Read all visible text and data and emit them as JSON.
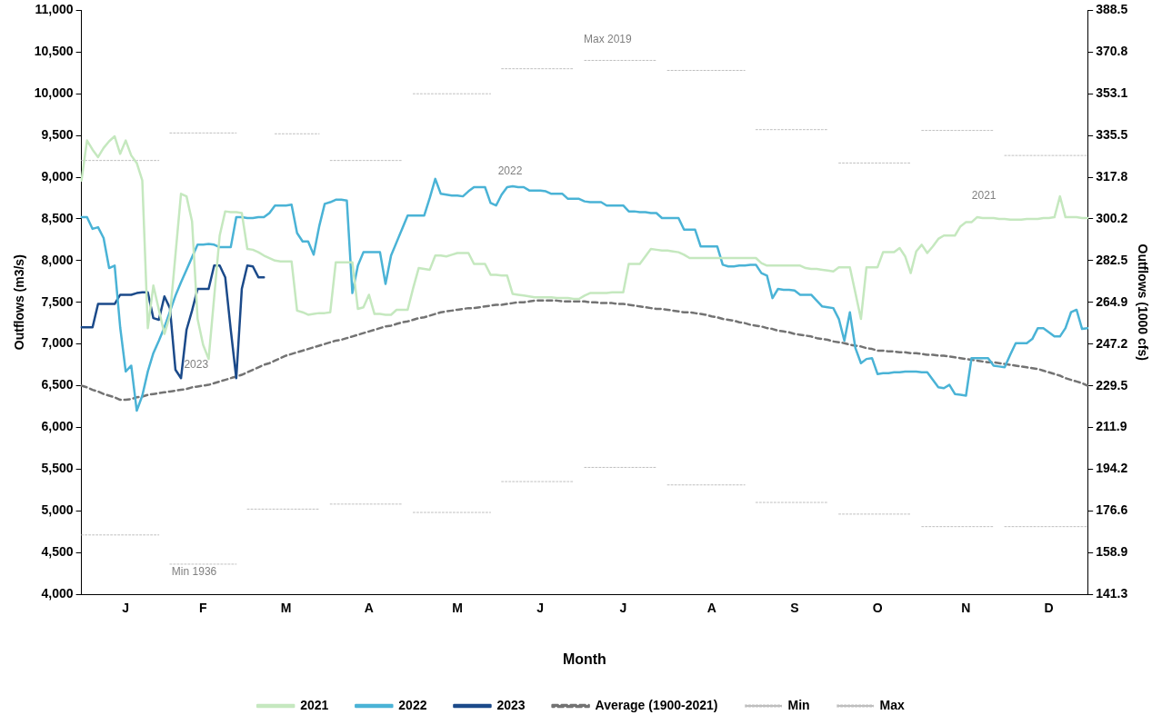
{
  "chart_data": {
    "type": "line",
    "xlabel": "Month",
    "ylabel": "Outflows (m3/s)",
    "y2label": "Outflows (1000 cfs)",
    "categories": [
      null,
      null,
      null,
      null,
      null,
      null,
      null,
      null,
      "J",
      null,
      null,
      null,
      null,
      null,
      null,
      null,
      null,
      null,
      null,
      null,
      null,
      null,
      "F",
      null,
      null,
      null,
      null,
      null,
      null,
      null,
      null,
      null,
      null,
      null,
      null,
      null,
      null,
      "M",
      null,
      null,
      null,
      null,
      null,
      null,
      null,
      null,
      null,
      null,
      null,
      null,
      null,
      null,
      "A",
      null,
      null,
      null,
      null,
      null,
      null,
      null,
      null,
      null,
      null,
      null,
      null,
      null,
      null,
      null,
      "M",
      null,
      null,
      null,
      null,
      null,
      null,
      null,
      null,
      null,
      null,
      null,
      null,
      null,
      null,
      "J",
      null,
      null,
      null,
      null,
      null,
      null,
      null,
      null,
      null,
      null,
      null,
      null,
      null,
      null,
      "J",
      null,
      null,
      null,
      null,
      null,
      null,
      null,
      null,
      null,
      null,
      null,
      null,
      null,
      null,
      null,
      "A",
      null,
      null,
      null,
      null,
      null,
      null,
      null,
      null,
      null,
      null,
      null,
      null,
      null,
      null,
      "S",
      null,
      null,
      null,
      null,
      null,
      null,
      null,
      null,
      null,
      null,
      null,
      null,
      null,
      null,
      "O",
      null,
      null,
      null,
      null,
      null,
      null,
      null,
      null,
      null,
      null,
      null,
      null,
      null,
      null,
      null,
      "N",
      null,
      null,
      null,
      null,
      null,
      null,
      null,
      null,
      null,
      null,
      null,
      null,
      null,
      null,
      "D",
      null,
      null,
      null,
      null,
      null,
      null,
      null
    ],
    "ylim": [
      4000,
      11000
    ],
    "yticks": [
      {
        "value": 4000,
        "label": "4,000"
      },
      {
        "value": 4500,
        "label": "4,500"
      },
      {
        "value": 5000,
        "label": "5,000"
      },
      {
        "value": 5500,
        "label": "5,500"
      },
      {
        "value": 6000,
        "label": "6,000"
      },
      {
        "value": 6500,
        "label": "6,500"
      },
      {
        "value": 7000,
        "label": "7,000"
      },
      {
        "value": 7500,
        "label": "7,500"
      },
      {
        "value": 8000,
        "label": "8,000"
      },
      {
        "value": 8500,
        "label": "8,500"
      },
      {
        "value": 9000,
        "label": "9,000"
      },
      {
        "value": 9500,
        "label": "9,500"
      },
      {
        "value": 10000,
        "label": "10,000"
      },
      {
        "value": 10500,
        "label": "10,500"
      },
      {
        "value": 11000,
        "label": "11,000"
      }
    ],
    "y2lim": [
      141.3,
      388.5
    ],
    "y2ticks": [
      141.3,
      158.9,
      176.6,
      194.2,
      211.9,
      229.5,
      247.2,
      264.9,
      282.5,
      300.2,
      317.8,
      335.5,
      353.1,
      370.8,
      388.5
    ],
    "grid": false,
    "legend": "bottom",
    "marker": "none",
    "series": [
      {
        "name": "2021",
        "color": "#c5e8bf",
        "line_style": "solid",
        "values": [
          8960,
          9440,
          9330,
          9240,
          9350,
          9430,
          9490,
          9280,
          9440,
          9260,
          9170,
          8960,
          7190,
          7700,
          7410,
          7120,
          7340,
          8070,
          8800,
          8770,
          8470,
          7300,
          6990,
          6820,
          7560,
          8300,
          8590,
          8580,
          8580,
          8570,
          8140,
          8130,
          8100,
          8060,
          8030,
          8000,
          7990,
          7990,
          7990,
          7400,
          7380,
          7350,
          7360,
          7370,
          7370,
          7380,
          7980,
          7980,
          7980,
          7980,
          7420,
          7440,
          7590,
          7360,
          7360,
          7350,
          7350,
          7410,
          7410,
          7410,
          7670,
          7910,
          7900,
          7890,
          8060,
          8060,
          8050,
          8070,
          8090,
          8090,
          8090,
          7960,
          7960,
          7960,
          7830,
          7830,
          7820,
          7820,
          7600,
          7590,
          7580,
          7570,
          7560,
          7560,
          7560,
          7560,
          7550,
          7550,
          7550,
          7540,
          7540,
          7580,
          7610,
          7610,
          7610,
          7610,
          7620,
          7620,
          7620,
          7960,
          7960,
          7960,
          8050,
          8140,
          8130,
          8120,
          8120,
          8110,
          8100,
          8070,
          8030,
          8030,
          8030,
          8030,
          8030,
          8030,
          8030,
          8030,
          8030,
          8030,
          8030,
          8030,
          8030,
          7970,
          7940,
          7940,
          7940,
          7940,
          7940,
          7940,
          7940,
          7910,
          7900,
          7900,
          7890,
          7880,
          7870,
          7920,
          7920,
          7920,
          7610,
          7300,
          7920,
          7920,
          7920,
          8100,
          8100,
          8100,
          8150,
          8050,
          7850,
          8110,
          8190,
          8090,
          8170,
          8260,
          8300,
          8300,
          8300,
          8410,
          8460,
          8460,
          8520,
          8510,
          8510,
          8510,
          8500,
          8500,
          8490,
          8490,
          8490,
          8500,
          8500,
          8500,
          8510,
          8510,
          8520,
          8770,
          8520,
          8520,
          8520,
          8510,
          8510
        ]
      },
      {
        "name": "2022",
        "color": "#4ab3d6",
        "line_style": "solid",
        "values": [
          8520,
          8520,
          8380,
          8400,
          8270,
          7910,
          7940,
          7200,
          6670,
          6740,
          6200,
          6380,
          6670,
          6890,
          7040,
          7200,
          7390,
          7580,
          7740,
          7890,
          8040,
          8190,
          8190,
          8200,
          8190,
          8160,
          8160,
          8160,
          8520,
          8520,
          8510,
          8510,
          8520,
          8520,
          8570,
          8660,
          8660,
          8660,
          8670,
          8330,
          8230,
          8230,
          8070,
          8410,
          8680,
          8700,
          8730,
          8730,
          8720,
          7610,
          7940,
          8100,
          8100,
          8100,
          8100,
          7720,
          8060,
          8220,
          8380,
          8540,
          8540,
          8540,
          8540,
          8750,
          8980,
          8800,
          8790,
          8780,
          8780,
          8770,
          8830,
          8880,
          8880,
          8880,
          8690,
          8660,
          8790,
          8880,
          8890,
          8880,
          8880,
          8840,
          8840,
          8840,
          8830,
          8800,
          8800,
          8800,
          8740,
          8740,
          8740,
          8710,
          8700,
          8700,
          8700,
          8660,
          8660,
          8660,
          8660,
          8590,
          8590,
          8580,
          8580,
          8570,
          8570,
          8510,
          8510,
          8510,
          8510,
          8370,
          8370,
          8370,
          8170,
          8170,
          8170,
          8170,
          7950,
          7930,
          7930,
          7940,
          7940,
          7950,
          7950,
          7850,
          7820,
          7550,
          7660,
          7650,
          7650,
          7640,
          7590,
          7590,
          7590,
          7520,
          7450,
          7440,
          7430,
          7300,
          7040,
          7380,
          6950,
          6770,
          6820,
          6830,
          6640,
          6650,
          6650,
          6660,
          6660,
          6670,
          6670,
          6670,
          6660,
          6660,
          6570,
          6480,
          6470,
          6510,
          6400,
          6390,
          6380,
          6830,
          6830,
          6830,
          6830,
          6740,
          6730,
          6720,
          6870,
          7010,
          7010,
          7010,
          7060,
          7190,
          7190,
          7140,
          7090,
          7090,
          7190,
          7380,
          7410,
          7180,
          7190
        ]
      },
      {
        "name": "2023",
        "color": "#1b4a8a",
        "line_style": "solid",
        "values": [
          7200,
          7200,
          7200,
          7480,
          7480,
          7480,
          7480,
          7590,
          7590,
          7590,
          7610,
          7620,
          7620,
          7310,
          7290,
          7570,
          7430,
          6690,
          6590,
          7170,
          7400,
          7660,
          7660,
          7660,
          7940,
          7940,
          7800,
          7170,
          6590,
          7660,
          7940,
          7930,
          7800,
          7800,
          null,
          null,
          null,
          null,
          null,
          null,
          null,
          null,
          null,
          null,
          null,
          null,
          null,
          null,
          null,
          null,
          null,
          null,
          null,
          null,
          null,
          null,
          null,
          null,
          null,
          null,
          null,
          null,
          null,
          null,
          null,
          null,
          null,
          null,
          null,
          null,
          null,
          null,
          null,
          null,
          null,
          null,
          null,
          null,
          null,
          null,
          null,
          null,
          null,
          null,
          null,
          null,
          null,
          null,
          null,
          null,
          null,
          null,
          null,
          null,
          null,
          null,
          null,
          null,
          null,
          null,
          null,
          null,
          null,
          null,
          null,
          null,
          null,
          null,
          null,
          null,
          null,
          null,
          null,
          null,
          null,
          null,
          null,
          null,
          null,
          null,
          null,
          null,
          null,
          null,
          null,
          null,
          null,
          null,
          null,
          null,
          null,
          null,
          null,
          null,
          null,
          null,
          null,
          null,
          null,
          null,
          null,
          null,
          null,
          null,
          null,
          null,
          null,
          null,
          null,
          null,
          null,
          null,
          null,
          null,
          null,
          null,
          null,
          null,
          null,
          null,
          null,
          null,
          null,
          null,
          null,
          null,
          null,
          null,
          null,
          null,
          null,
          null,
          null,
          null,
          null,
          null,
          null,
          null,
          null,
          null,
          null,
          null,
          null
        ]
      },
      {
        "name": "Average (1900-2021)",
        "color": "#737373",
        "line_style": "dashed",
        "values": [
          6500,
          6480,
          6450,
          6430,
          6400,
          6380,
          6360,
          6330,
          6330,
          6340,
          6360,
          6370,
          6390,
          6400,
          6410,
          6420,
          6430,
          6440,
          6450,
          6460,
          6480,
          6490,
          6500,
          6510,
          6530,
          6550,
          6570,
          6590,
          6610,
          6630,
          6660,
          6690,
          6720,
          6750,
          6770,
          6800,
          6830,
          6860,
          6880,
          6900,
          6920,
          6940,
          6960,
          6980,
          7000,
          7020,
          7040,
          7050,
          7070,
          7090,
          7110,
          7130,
          7150,
          7170,
          7190,
          7210,
          7220,
          7240,
          7260,
          7270,
          7290,
          7310,
          7320,
          7340,
          7360,
          7380,
          7390,
          7400,
          7410,
          7420,
          7430,
          7430,
          7440,
          7450,
          7460,
          7470,
          7470,
          7480,
          7490,
          7500,
          7500,
          7510,
          7520,
          7520,
          7520,
          7520,
          7520,
          7510,
          7510,
          7510,
          7510,
          7510,
          7500,
          7500,
          7490,
          7490,
          7490,
          7480,
          7480,
          7470,
          7460,
          7450,
          7440,
          7430,
          7420,
          7420,
          7410,
          7400,
          7390,
          7380,
          7380,
          7370,
          7360,
          7350,
          7330,
          7320,
          7300,
          7290,
          7280,
          7260,
          7250,
          7230,
          7220,
          7210,
          7190,
          7180,
          7160,
          7150,
          7140,
          7120,
          7110,
          7100,
          7090,
          7070,
          7060,
          7050,
          7030,
          7020,
          7010,
          6990,
          6980,
          6970,
          6950,
          6940,
          6920,
          6920,
          6910,
          6910,
          6900,
          6900,
          6890,
          6890,
          6880,
          6870,
          6870,
          6860,
          6860,
          6850,
          6840,
          6830,
          6820,
          6810,
          6800,
          6790,
          6780,
          6780,
          6770,
          6760,
          6750,
          6740,
          6730,
          6720,
          6710,
          6700,
          6680,
          6660,
          6640,
          6620,
          6590,
          6570,
          6550,
          6530,
          6500
        ]
      },
      {
        "name": "Min",
        "color": "#bfbfbf",
        "line_style": "dotted",
        "values": [
          4710,
          4710,
          4710,
          4710,
          4710,
          4710,
          4710,
          4710,
          4710,
          4710,
          4710,
          4710,
          4710,
          4710,
          4710,
          null,
          4360,
          4360,
          4360,
          4360,
          4360,
          4360,
          4360,
          4360,
          4360,
          4360,
          4360,
          4360,
          4360,
          null,
          5020,
          5020,
          5020,
          5020,
          5020,
          5020,
          5020,
          5020,
          5020,
          5020,
          5020,
          5020,
          5020,
          5020,
          null,
          5080,
          5080,
          5080,
          5080,
          5080,
          5080,
          5080,
          5080,
          5080,
          5080,
          5080,
          5080,
          5080,
          5080,
          null,
          4980,
          4980,
          4980,
          4980,
          4980,
          4980,
          4980,
          4980,
          4980,
          4980,
          4980,
          4980,
          4980,
          4980,
          4980,
          null,
          5350,
          5350,
          5350,
          5350,
          5350,
          5350,
          5350,
          5350,
          5350,
          5350,
          5350,
          5350,
          5350,
          5350,
          null,
          5520,
          5520,
          5520,
          5520,
          5520,
          5520,
          5520,
          5520,
          5520,
          5520,
          5520,
          5520,
          5520,
          5520,
          null,
          5310,
          5310,
          5310,
          5310,
          5310,
          5310,
          5310,
          5310,
          5310,
          5310,
          5310,
          5310,
          5310,
          5310,
          5310,
          null,
          5100,
          5100,
          5100,
          5100,
          5100,
          5100,
          5100,
          5100,
          5100,
          5100,
          5100,
          5100,
          5100,
          5100,
          null,
          4960,
          4960,
          4960,
          4960,
          4960,
          4960,
          4960,
          4960,
          4960,
          4960,
          4960,
          4960,
          4960,
          4960,
          null,
          4810,
          4810,
          4810,
          4810,
          4810,
          4810,
          4810,
          4810,
          4810,
          4810,
          4810,
          4810,
          4810,
          4810,
          null,
          4810,
          4810,
          4810,
          4810,
          4810,
          4810,
          4810,
          4810,
          4810,
          4810,
          4810,
          4810,
          4810,
          4810,
          4810,
          4810
        ]
      },
      {
        "name": "Max",
        "color": "#bfbfbf",
        "line_style": "dotted",
        "values": [
          9200,
          9200,
          9200,
          9200,
          9200,
          9200,
          9200,
          9200,
          9200,
          9200,
          9200,
          9200,
          9200,
          9200,
          9200,
          null,
          9530,
          9530,
          9530,
          9530,
          9530,
          9530,
          9530,
          9530,
          9530,
          9530,
          9530,
          9530,
          9530,
          null,
          null,
          null,
          null,
          null,
          null,
          9520,
          9520,
          9520,
          9520,
          9520,
          9520,
          9520,
          9520,
          9520,
          null,
          9200,
          9200,
          9200,
          9200,
          9200,
          9200,
          9200,
          9200,
          9200,
          9200,
          9200,
          9200,
          9200,
          9200,
          null,
          10000,
          10000,
          10000,
          10000,
          10000,
          10000,
          10000,
          10000,
          10000,
          10000,
          10000,
          10000,
          10000,
          10000,
          10000,
          null,
          10300,
          10300,
          10300,
          10300,
          10300,
          10300,
          10300,
          10300,
          10300,
          10300,
          10300,
          10300,
          10300,
          10300,
          null,
          10400,
          10400,
          10400,
          10400,
          10400,
          10400,
          10400,
          10400,
          10400,
          10400,
          10400,
          10400,
          10400,
          10400,
          null,
          10280,
          10280,
          10280,
          10280,
          10280,
          10280,
          10280,
          10280,
          10280,
          10280,
          10280,
          10280,
          10280,
          10280,
          10280,
          null,
          9570,
          9570,
          9570,
          9570,
          9570,
          9570,
          9570,
          9570,
          9570,
          9570,
          9570,
          9570,
          9570,
          9570,
          null,
          9170,
          9170,
          9170,
          9170,
          9170,
          9170,
          9170,
          9170,
          9170,
          9170,
          9170,
          9170,
          9170,
          9170,
          null,
          9560,
          9560,
          9560,
          9560,
          9560,
          9560,
          9560,
          9560,
          9560,
          9560,
          9560,
          9560,
          9560,
          9560,
          null,
          9260,
          9260,
          9260,
          9260,
          9260,
          9260,
          9260,
          9260,
          9260,
          9260,
          9260,
          9260,
          9260,
          9260,
          9260,
          9260
        ]
      }
    ],
    "annotations": [
      "2021",
      "2022",
      "2023",
      "Max 2019",
      "Min 1936"
    ]
  }
}
